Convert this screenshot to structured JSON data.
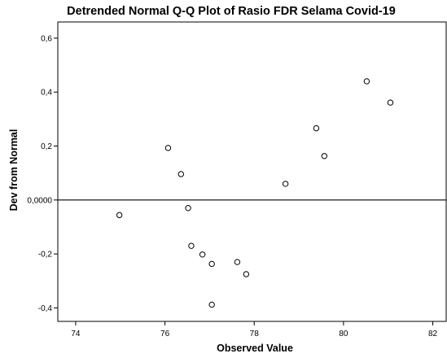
{
  "chart_data": {
    "type": "scatter",
    "title": "Detrended Normal Q-Q Plot of Rasio FDR Selama Covid-19",
    "xlabel": "Observed Value",
    "ylabel": "Dev from Normal",
    "xlim": [
      73.6,
      82.3
    ],
    "ylim": [
      -0.45,
      0.66
    ],
    "x_ticks": [
      74,
      76,
      78,
      80,
      82
    ],
    "x_tick_labels": [
      "74",
      "76",
      "78",
      "80",
      "82"
    ],
    "y_ticks": [
      -0.4,
      -0.2,
      0.0,
      0.2,
      0.4,
      0.6
    ],
    "y_tick_labels": [
      "-0,4",
      "-0,2",
      "0,0000",
      "0,2",
      "0,4",
      "0,6"
    ],
    "reference_line_y": 0.0,
    "grid": false,
    "marker": "open-circle",
    "points": [
      {
        "x": 74.98,
        "y": -0.056
      },
      {
        "x": 76.07,
        "y": 0.193
      },
      {
        "x": 76.36,
        "y": 0.096
      },
      {
        "x": 76.52,
        "y": -0.03
      },
      {
        "x": 76.59,
        "y": -0.17
      },
      {
        "x": 76.84,
        "y": -0.202
      },
      {
        "x": 77.05,
        "y": -0.237
      },
      {
        "x": 77.05,
        "y": -0.388
      },
      {
        "x": 77.62,
        "y": -0.23
      },
      {
        "x": 77.82,
        "y": -0.275
      },
      {
        "x": 78.7,
        "y": 0.06
      },
      {
        "x": 79.39,
        "y": 0.266
      },
      {
        "x": 79.57,
        "y": 0.163
      },
      {
        "x": 80.52,
        "y": 0.44
      },
      {
        "x": 81.05,
        "y": 0.361
      }
    ]
  }
}
